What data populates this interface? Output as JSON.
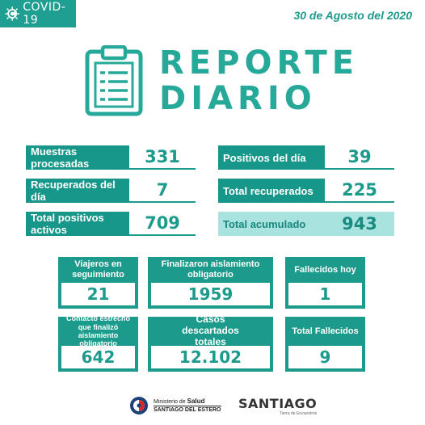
{
  "header": {
    "tag_label": "COVID-19",
    "date": "30 de Agosto del 2020"
  },
  "title": {
    "line1": "REPORTE",
    "line2": "DIARIO"
  },
  "stats": {
    "muestras": {
      "label": "Muestras procesadas",
      "value": "331"
    },
    "positivos_dia": {
      "label": "Positivos del día",
      "value": "39"
    },
    "recuperados_dia": {
      "label": "Recuperados del día",
      "value": "7"
    },
    "total_recuperados": {
      "label": "Total recuperados",
      "value": "225"
    },
    "total_positivos_activos": {
      "label": "Total positivos activos",
      "value": "709"
    },
    "total_acumulado": {
      "label": "Total acumulado",
      "value": "943"
    }
  },
  "boxes": {
    "viajeros": {
      "label": "Viajeros en seguimiento",
      "value": "21"
    },
    "finalizaron": {
      "label": "Finalizaron aislamiento obligatorio",
      "value": "1959"
    },
    "fallecidos_hoy": {
      "label": "Fallecidos hoy",
      "value": "1"
    },
    "contacto": {
      "label": "Contacto estrecho que finalizó aislamiento obligatorio",
      "value": "642"
    },
    "descartados": {
      "label": "Casos descartados totales",
      "value": "12.102"
    },
    "total_fallecidos": {
      "label": "Total Fallecidos",
      "value": "9"
    }
  },
  "footer": {
    "ministerio_line1": "Ministerio de",
    "ministerio_line2": "Salud",
    "ministerio_line3": "SANTIAGO DEL ESTERO",
    "santiago_word": "SANTIAGO",
    "santiago_sub": "Tierra de Encuentros"
  },
  "colors": {
    "accent": "#1c9a8c",
    "accent_light": "#a9e3df"
  }
}
